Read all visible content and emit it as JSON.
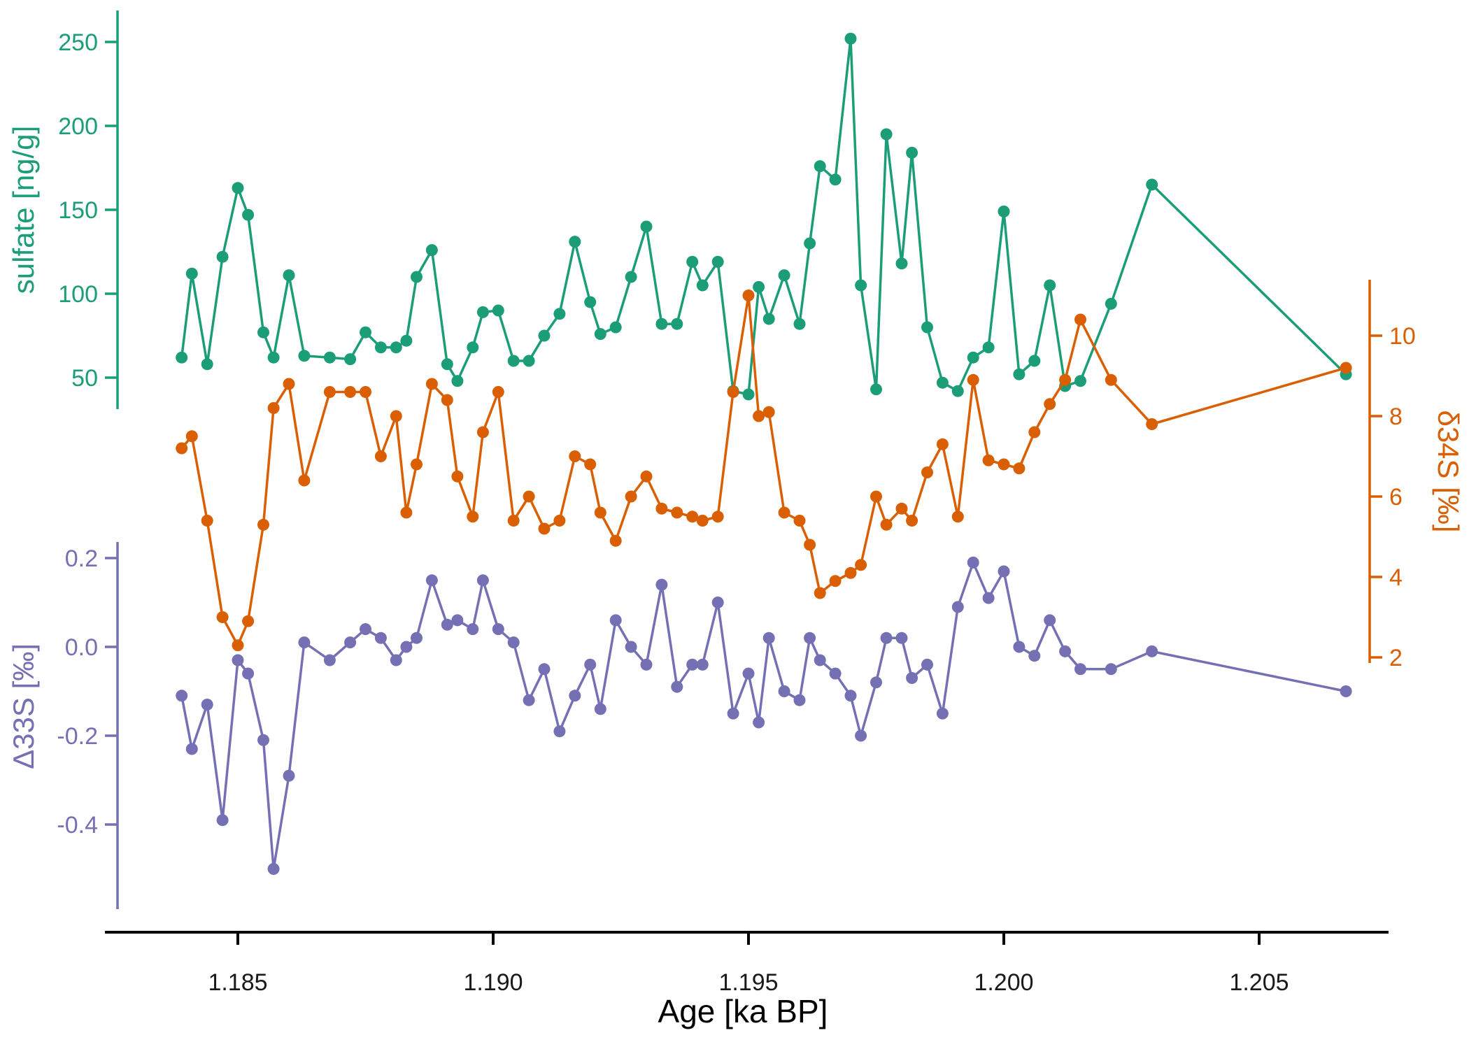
{
  "chart_data": {
    "type": "line",
    "title": "",
    "xlabel": "Age [ka BP]",
    "grid": false,
    "legend": "none",
    "xlim": [
      1.1833,
      1.2078
    ],
    "x_ticks": [
      {
        "v": 1.185,
        "label": "1.185"
      },
      {
        "v": 1.19,
        "label": "1.190"
      },
      {
        "v": 1.195,
        "label": "1.195"
      },
      {
        "v": 1.2,
        "label": "1.200"
      },
      {
        "v": 1.205,
        "label": "1.205"
      }
    ],
    "series": [
      {
        "name": "sulfate",
        "axis_label": "sulfate [ng/g]",
        "color": "#1B9E77",
        "axis_side": "left-top",
        "ylim": [
          30,
          260
        ],
        "ticks": [
          {
            "v": 250,
            "label": "250"
          },
          {
            "v": 200,
            "label": "200"
          },
          {
            "v": 150,
            "label": "150"
          },
          {
            "v": 100,
            "label": "100"
          },
          {
            "v": 50,
            "label": "50"
          }
        ],
        "x": [
          1.1839,
          1.1841,
          1.1844,
          1.1847,
          1.185,
          1.1852,
          1.1855,
          1.1857,
          1.186,
          1.1863,
          1.1868,
          1.1872,
          1.1875,
          1.1878,
          1.1881,
          1.1883,
          1.1885,
          1.1888,
          1.1891,
          1.1893,
          1.1896,
          1.1898,
          1.1901,
          1.1904,
          1.1907,
          1.191,
          1.1913,
          1.1916,
          1.1919,
          1.1921,
          1.1924,
          1.1927,
          1.193,
          1.1933,
          1.1936,
          1.1939,
          1.1941,
          1.1944,
          1.1947,
          1.195,
          1.1952,
          1.1954,
          1.1957,
          1.196,
          1.1962,
          1.1964,
          1.1967,
          1.197,
          1.1972,
          1.1975,
          1.1977,
          1.198,
          1.1982,
          1.1985,
          1.1988,
          1.1991,
          1.1994,
          1.1997,
          1.2,
          1.2003,
          1.2006,
          1.2009,
          1.2012,
          1.2015,
          1.2021,
          1.2029,
          1.2067
        ],
        "y": [
          62,
          112,
          58,
          122,
          163,
          147,
          77,
          62,
          111,
          63,
          62,
          61,
          77,
          68,
          68,
          72,
          110,
          126,
          58,
          48,
          68,
          89,
          90,
          60,
          60,
          75,
          88,
          131,
          95,
          76,
          80,
          110,
          140,
          82,
          82,
          119,
          105,
          119,
          42,
          40,
          104,
          85,
          111,
          82,
          130,
          176,
          168,
          252,
          105,
          43,
          195,
          118,
          184,
          80,
          47,
          42,
          62,
          68,
          149,
          52,
          60,
          105,
          45,
          48,
          94,
          165,
          52
        ]
      },
      {
        "name": "d34S",
        "axis_label": "δ34S [‰]",
        "color": "#D95F02",
        "axis_side": "right",
        "ylim": [
          1.8,
          11.2
        ],
        "ticks": [
          {
            "v": 10,
            "label": "10"
          },
          {
            "v": 8,
            "label": "8"
          },
          {
            "v": 6,
            "label": "6"
          },
          {
            "v": 4,
            "label": "4"
          },
          {
            "v": 2,
            "label": "2"
          }
        ],
        "x": [
          1.1839,
          1.1841,
          1.1844,
          1.1847,
          1.185,
          1.1852,
          1.1855,
          1.1857,
          1.186,
          1.1863,
          1.1868,
          1.1872,
          1.1875,
          1.1878,
          1.1881,
          1.1883,
          1.1885,
          1.1888,
          1.1891,
          1.1893,
          1.1896,
          1.1898,
          1.1901,
          1.1904,
          1.1907,
          1.191,
          1.1913,
          1.1916,
          1.1919,
          1.1921,
          1.1924,
          1.1927,
          1.193,
          1.1933,
          1.1936,
          1.1939,
          1.1941,
          1.1944,
          1.1947,
          1.195,
          1.1952,
          1.1954,
          1.1957,
          1.196,
          1.1962,
          1.1964,
          1.1967,
          1.197,
          1.1972,
          1.1975,
          1.1977,
          1.198,
          1.1982,
          1.1985,
          1.1988,
          1.1991,
          1.1994,
          1.1997,
          1.2,
          1.2003,
          1.2006,
          1.2009,
          1.2012,
          1.2015,
          1.2021,
          1.2029,
          1.2067
        ],
        "y": [
          7.2,
          7.5,
          5.4,
          3.0,
          2.3,
          2.9,
          5.3,
          8.2,
          8.8,
          6.4,
          8.6,
          8.6,
          8.6,
          7.0,
          8.0,
          5.6,
          6.8,
          8.8,
          8.4,
          6.5,
          5.5,
          7.6,
          8.6,
          5.4,
          6.0,
          5.2,
          5.4,
          7.0,
          6.8,
          5.6,
          4.9,
          6.0,
          6.5,
          5.7,
          5.6,
          5.5,
          5.4,
          5.5,
          8.6,
          11.0,
          8.0,
          8.1,
          5.6,
          5.4,
          4.8,
          3.6,
          3.9,
          4.1,
          4.3,
          6.0,
          5.3,
          5.7,
          5.4,
          6.6,
          7.3,
          5.5,
          8.9,
          6.9,
          6.8,
          6.7,
          7.6,
          8.3,
          8.9,
          10.4,
          8.9,
          7.8,
          9.2
        ]
      },
      {
        "name": "D33S",
        "axis_label": "Δ33S [‰]",
        "color": "#7570B3",
        "axis_side": "left-bottom",
        "ylim": [
          -0.55,
          0.25
        ],
        "ticks": [
          {
            "v": 0.2,
            "label": "0.2"
          },
          {
            "v": 0,
            "label": "0.0"
          },
          {
            "v": -0.2,
            "label": "-0.2"
          },
          {
            "v": -0.4,
            "label": "-0.4"
          }
        ],
        "x": [
          1.1839,
          1.1841,
          1.1844,
          1.1847,
          1.185,
          1.1852,
          1.1855,
          1.1857,
          1.186,
          1.1863,
          1.1868,
          1.1872,
          1.1875,
          1.1878,
          1.1881,
          1.1883,
          1.1885,
          1.1888,
          1.1891,
          1.1893,
          1.1896,
          1.1898,
          1.1901,
          1.1904,
          1.1907,
          1.191,
          1.1913,
          1.1916,
          1.1919,
          1.1921,
          1.1924,
          1.1927,
          1.193,
          1.1933,
          1.1936,
          1.1939,
          1.1941,
          1.1944,
          1.1947,
          1.195,
          1.1952,
          1.1954,
          1.1957,
          1.196,
          1.1962,
          1.1964,
          1.1967,
          1.197,
          1.1972,
          1.1975,
          1.1977,
          1.198,
          1.1982,
          1.1985,
          1.1988,
          1.1991,
          1.1994,
          1.1997,
          1.2,
          1.2003,
          1.2006,
          1.2009,
          1.2012,
          1.2015,
          1.2021,
          1.2029,
          1.2067
        ],
        "y": [
          -0.11,
          -0.23,
          -0.13,
          -0.39,
          -0.03,
          -0.06,
          -0.21,
          -0.5,
          -0.29,
          0.01,
          -0.03,
          0.01,
          0.04,
          0.02,
          -0.03,
          0,
          0.02,
          0.15,
          0.05,
          0.06,
          0.04,
          0.15,
          0.04,
          0.01,
          -0.12,
          -0.05,
          -0.19,
          -0.11,
          -0.04,
          -0.14,
          0.06,
          0,
          -0.04,
          0.14,
          -0.09,
          -0.04,
          -0.04,
          0.1,
          -0.15,
          -0.06,
          -0.17,
          0.02,
          -0.1,
          -0.12,
          0.02,
          -0.03,
          -0.06,
          -0.11,
          -0.2,
          -0.08,
          0.02,
          0.02,
          -0.07,
          -0.04,
          -0.15,
          0.09,
          0.19,
          0.11,
          0.17,
          0,
          -0.02,
          0.06,
          -0.01,
          -0.05,
          -0.05,
          -0.01,
          -0.1
        ]
      }
    ]
  }
}
